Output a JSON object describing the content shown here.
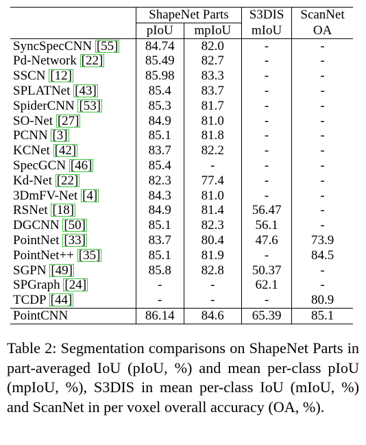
{
  "table": {
    "group_headers": {
      "shapenet": "ShapeNet Parts",
      "s3dis": "S3DIS",
      "scannet": "ScanNet"
    },
    "sub_headers": {
      "piou": "pIoU",
      "mpiou": "mpIoU",
      "miou": "mIoU",
      "oa": "OA"
    },
    "rows": [
      {
        "method": "SyncSpecCNN",
        "ref": "[55]",
        "piou": "84.74",
        "mpiou": "82.0",
        "miou": "-",
        "oa": "-"
      },
      {
        "method": "Pd-Network",
        "ref": "[22]",
        "piou": "85.49",
        "mpiou": "82.7",
        "miou": "-",
        "oa": "-"
      },
      {
        "method": "SSCN",
        "ref": "[12]",
        "piou": "85.98",
        "mpiou": "83.3",
        "miou": "-",
        "oa": "-"
      },
      {
        "method": "SPLATNet",
        "ref": "[43]",
        "piou": "85.4",
        "mpiou": "83.7",
        "miou": "-",
        "oa": "-"
      },
      {
        "method": "SpiderCNN",
        "ref": "[53]",
        "piou": "85.3",
        "mpiou": "81.7",
        "miou": "-",
        "oa": "-"
      },
      {
        "method": "SO-Net",
        "ref": "[27]",
        "piou": "84.9",
        "mpiou": "81.0",
        "miou": "-",
        "oa": "-"
      },
      {
        "method": "PCNN",
        "ref": "[3]",
        "piou": "85.1",
        "mpiou": "81.8",
        "miou": "-",
        "oa": "-"
      },
      {
        "method": "KCNet",
        "ref": "[42]",
        "piou": "83.7",
        "mpiou": "82.2",
        "miou": "-",
        "oa": "-"
      },
      {
        "method": "SpecGCN",
        "ref": "[46]",
        "piou": "85.4",
        "mpiou": "-",
        "miou": "-",
        "oa": "-"
      },
      {
        "method": "Kd-Net",
        "ref": "[22]",
        "piou": "82.3",
        "mpiou": "77.4",
        "miou": "-",
        "oa": "-"
      },
      {
        "method": "3DmFV-Net",
        "ref": "[4]",
        "piou": "84.3",
        "mpiou": "81.0",
        "miou": "-",
        "oa": "-"
      },
      {
        "method": "RSNet",
        "ref": "[18]",
        "piou": "84.9",
        "mpiou": "81.4",
        "miou": "56.47",
        "oa": "-"
      },
      {
        "method": "DGCNN",
        "ref": "[50]",
        "piou": "85.1",
        "mpiou": "82.3",
        "miou": "56.1",
        "oa": "-"
      },
      {
        "method": "PointNet",
        "ref": "[33]",
        "piou": "83.7",
        "mpiou": "80.4",
        "miou": "47.6",
        "oa": "73.9"
      },
      {
        "method": "PointNet++",
        "ref": "[35]",
        "piou": "85.1",
        "mpiou": "81.9",
        "miou": "-",
        "oa": "84.5"
      },
      {
        "method": "SGPN",
        "ref": "[49]",
        "piou": "85.8",
        "mpiou": "82.8",
        "miou": "50.37",
        "oa": "-"
      },
      {
        "method": "SPGraph",
        "ref": "[24]",
        "piou": "-",
        "mpiou": "-",
        "miou": "62.1",
        "oa": "-"
      },
      {
        "method": "TCDP",
        "ref": "[44]",
        "piou": "-",
        "mpiou": "-",
        "miou": "-",
        "oa": "80.9"
      }
    ],
    "final_row": {
      "method": "PointCNN",
      "piou": "86.14",
      "mpiou": "84.6",
      "miou": "65.39",
      "oa": "85.1"
    }
  },
  "caption": "Table 2: Segmentation comparisons on ShapeNet Parts in part-averaged IoU (pIoU, %) and mean per-class pIoU (mpIoU, %), S3DIS in mean per-class IoU (mIoU, %) and ScanNet in per voxel overall accuracy (OA, %)."
}
